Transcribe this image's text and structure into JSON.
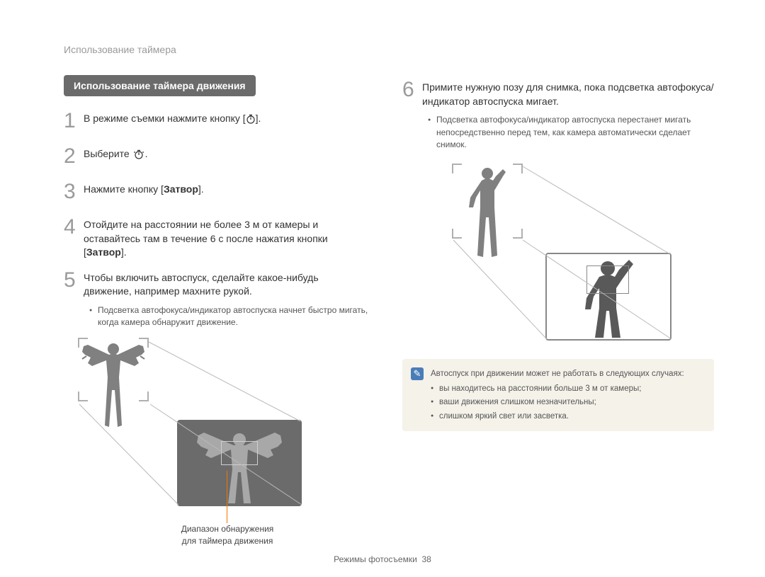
{
  "breadcrumb": "Использование таймера",
  "section_header": "Использование таймера движения",
  "steps": [
    {
      "num": "1",
      "segments": [
        {
          "t": "В режиме съемки нажмите кнопку ["
        },
        {
          "icon": "timer"
        },
        {
          "t": "]."
        }
      ]
    },
    {
      "num": "2",
      "segments": [
        {
          "t": "Выберите "
        },
        {
          "icon": "motion"
        },
        {
          "t": "."
        }
      ]
    },
    {
      "num": "3",
      "segments": [
        {
          "t": "Нажмите кнопку ["
        },
        {
          "b": "Затвор"
        },
        {
          "t": "]."
        }
      ]
    },
    {
      "num": "4",
      "segments": [
        {
          "t": "Отойдите на расстоянии не более 3 м от камеры и оставайтесь там в течение 6 с после нажатия кнопки ["
        },
        {
          "b": "Затвор"
        },
        {
          "t": "]."
        }
      ]
    },
    {
      "num": "5",
      "segments": [
        {
          "t": "Чтобы включить автоспуск, сделайте какое-нибудь движение, например махните рукой."
        }
      ]
    }
  ],
  "sub_bullet_5": "Подсветка автофокуса/индикатор автоспуска начнет быстро мигать, когда камера обнаружит движение.",
  "caption_left_1": "Диапазон обнаружения",
  "caption_left_2": "для таймера движения",
  "step6": {
    "num": "6",
    "segments": [
      {
        "t": "Примите нужную позу для снимка, пока подсветка автофокуса/индикатор автоспуска мигает."
      }
    ]
  },
  "sub_bullet_6": "Подсветка автофокуса/индикатор автоспуска перестанет мигать непосредственно перед тем, как камера автоматически сделает снимок.",
  "info_intro": "Автоспуск при движении может не работать в следующих случаях:",
  "info_items": [
    "вы находитесь на расстоянии больше 3 м от камеры;",
    "ваши движения слишком незначительны;",
    "слишком яркий свет или засветка."
  ],
  "footer_label": "Режимы фотосъемки",
  "footer_page": "38",
  "colors": {
    "header_bg": "#6b6b6b",
    "step_num": "#9a9a9a",
    "orange": "#f07800",
    "info_bg": "#f5f2ea",
    "info_icon_bg": "#4a7db8",
    "person_fill": "#808080",
    "person_dark": "#595959"
  }
}
